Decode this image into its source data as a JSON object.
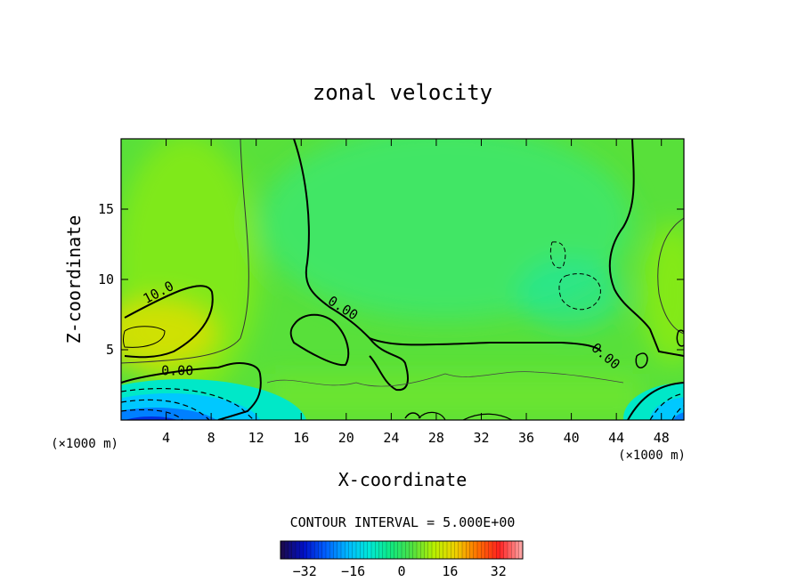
{
  "chart_data": {
    "type": "heatmap",
    "title": "zonal velocity",
    "xlabel": "X-coordinate",
    "ylabel": "Z-coordinate",
    "x_units": "(×1000 m)",
    "x_units_right": "(×1000 m)",
    "xlim": [
      0,
      50
    ],
    "ylim": [
      0,
      20
    ],
    "xticks": [
      4,
      8,
      12,
      16,
      20,
      24,
      28,
      32,
      36,
      40,
      44,
      48
    ],
    "yticks": [
      5,
      10,
      15
    ],
    "contour_interval_label": "CONTOUR INTERVAL = 5.000E+00",
    "contour_labels": [
      {
        "text": "10.0",
        "x": 3.5,
        "y": 8.8
      },
      {
        "text": "0.00",
        "x": 5.0,
        "y": 3.2
      },
      {
        "text": "0.00",
        "x": 19.5,
        "y": 7.7
      },
      {
        "text": "0.00",
        "x": 42.8,
        "y": 4.3
      }
    ],
    "colorbar": {
      "range": [
        -40,
        40
      ],
      "ticks": [
        -32,
        -16,
        0,
        16,
        32
      ]
    },
    "colormap": [
      "#1a0a50",
      "#0010c8",
      "#0060ff",
      "#00b8ff",
      "#00e8d8",
      "#10e880",
      "#50e040",
      "#b8f000",
      "#f0d000",
      "#ff7000",
      "#ff2020",
      "#ffa0a0"
    ]
  }
}
